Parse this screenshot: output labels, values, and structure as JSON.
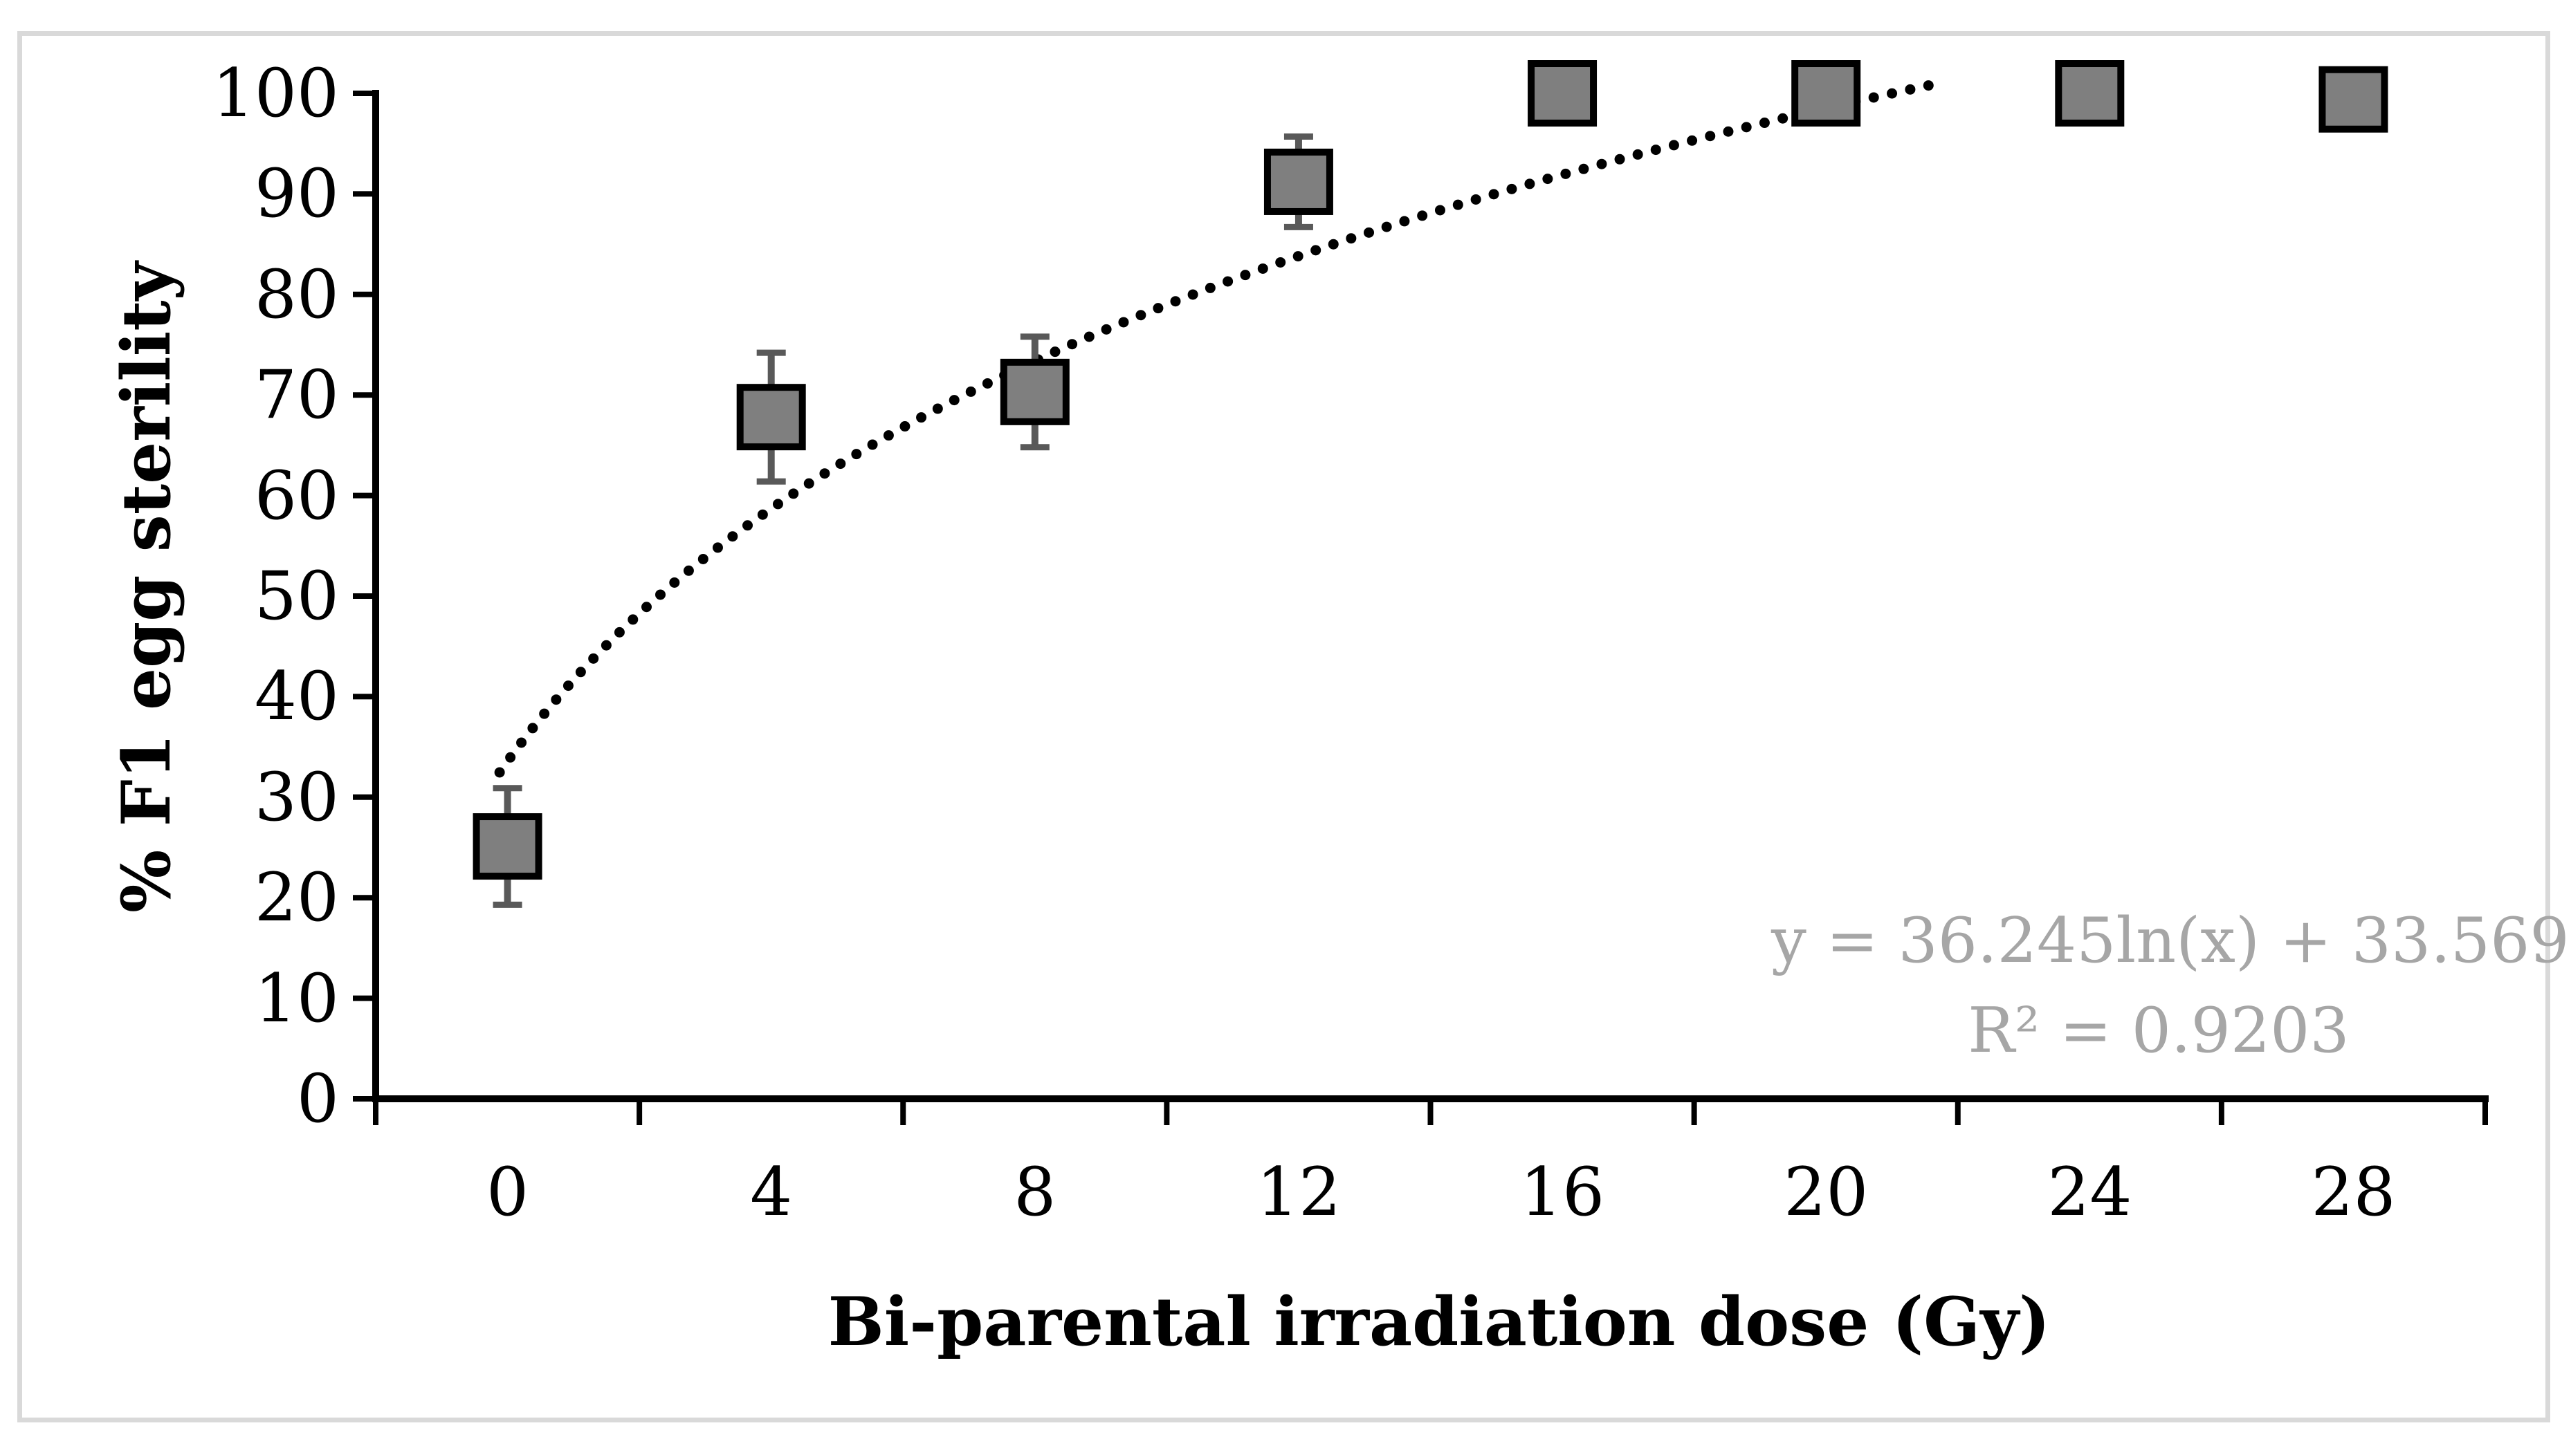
{
  "figure": {
    "y_axis_title": "% F1 egg sterility",
    "x_axis_title": "Bi-parental irradiation dose (Gy)",
    "equation_line1": "y = 36.245ln(x) + 33.569",
    "equation_line2": "R² = 0.9203"
  },
  "chart_data": {
    "type": "scatter",
    "title": "",
    "xlabel": "Bi-parental irradiation dose (Gy)",
    "ylabel": "% F1 egg sterility",
    "categories": [
      0,
      4,
      8,
      12,
      16,
      20,
      24,
      28
    ],
    "series": [
      {
        "name": "% F1 egg sterility",
        "values": [
          25.1,
          67.8,
          70.3,
          91.2,
          100,
          100,
          100,
          99.4
        ],
        "error_bars": [
          5.8,
          6.4,
          5.5,
          4.5,
          0,
          0,
          0,
          0
        ]
      }
    ],
    "y_ticks": [
      0,
      10,
      20,
      30,
      40,
      50,
      60,
      70,
      80,
      90,
      100
    ],
    "ylim": [
      0,
      100
    ],
    "grid": false,
    "legend": false,
    "marker": "square",
    "trendline": {
      "type": "logarithmic",
      "slope": 36.245,
      "intercept": 33.569,
      "equation": "y = 36.245ln(x) + 33.569",
      "r_squared": 0.9203,
      "t_start": 0.97,
      "t_end": 6.42,
      "style": "dotted"
    },
    "colors": {
      "marker_fill": "#7f7f7f",
      "marker_border": "#000000",
      "error_bar": "#595959",
      "trendline": "#000000",
      "equation_text": "#a6a6a6",
      "axis": "#000000",
      "frame_border": "#d9d9d9",
      "background": "#ffffff"
    }
  }
}
